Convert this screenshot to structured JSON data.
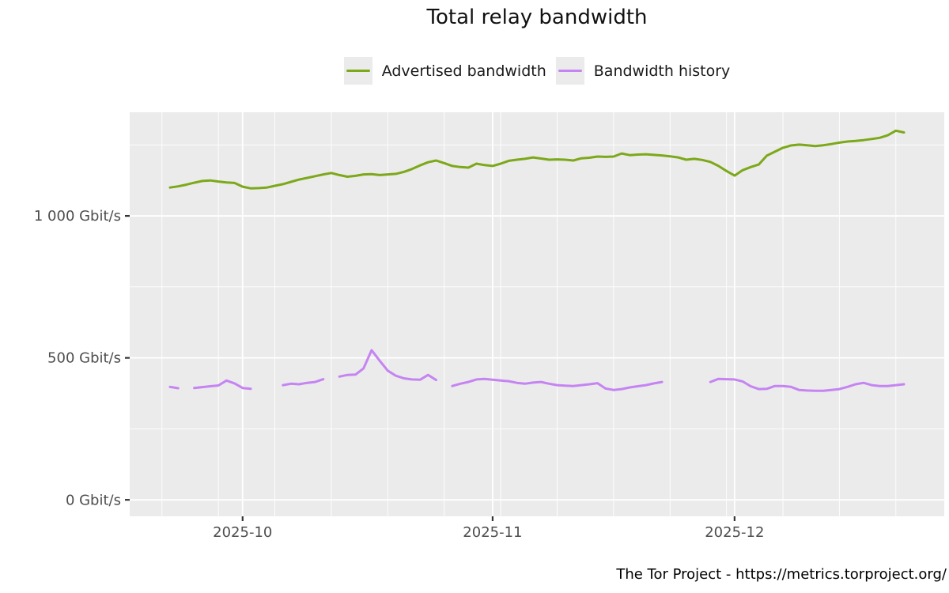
{
  "footer": {
    "text": "The Tor Project - https://metrics.torproject.org/"
  },
  "chart_data": {
    "type": "line",
    "title": "Total relay bandwidth",
    "xlabel": "",
    "ylabel": "",
    "legend_position": "top-center",
    "panel_bg": "#ebebeb",
    "grid_color": "#ffffff",
    "axis_text_color": "#4d4d4d",
    "tick_mark_color": "#333333",
    "x_domain": [
      "2025-09-17",
      "2025-12-27"
    ],
    "y_domain": [
      -58,
      1365
    ],
    "y_ticks": [
      {
        "value": 0,
        "label": "0 Gbit/s"
      },
      {
        "value": 500,
        "label": "500 Gbit/s"
      },
      {
        "value": 1000,
        "label": "1 000 Gbit/s"
      }
    ],
    "y_minor_gridlines": [
      250,
      750,
      1250
    ],
    "x_ticks": [
      {
        "date": "2025-10-01",
        "label": "2025-10"
      },
      {
        "date": "2025-11-01",
        "label": "2025-11"
      },
      {
        "date": "2025-12-01",
        "label": "2025-12"
      }
    ],
    "x_minor_gridlines": [
      "2025-09-21",
      "2025-09-28",
      "2025-10-05",
      "2025-10-12",
      "2025-10-19",
      "2025-10-26",
      "2025-11-02",
      "2025-11-09",
      "2025-11-16",
      "2025-11-23",
      "2025-11-30",
      "2025-12-07",
      "2025-12-14",
      "2025-12-21"
    ],
    "series": [
      {
        "name": "Advertised bandwidth",
        "color": "#7ca819",
        "unit": "Gbit/s",
        "start_date": "2025-09-22",
        "interval": "daily",
        "values": [
          1100,
          1104,
          1110,
          1117,
          1123,
          1125,
          1121,
          1118,
          1116,
          1103,
          1097,
          1098,
          1100,
          1106,
          1112,
          1120,
          1128,
          1134,
          1140,
          1146,
          1151,
          1144,
          1138,
          1141,
          1146,
          1147,
          1144,
          1146,
          1148,
          1155,
          1165,
          1178,
          1189,
          1195,
          1186,
          1176,
          1172,
          1170,
          1184,
          1179,
          1176,
          1184,
          1194,
          1198,
          1201,
          1206,
          1202,
          1198,
          1199,
          1198,
          1195,
          1203,
          1205,
          1209,
          1208,
          1209,
          1220,
          1214,
          1216,
          1217,
          1215,
          1213,
          1210,
          1206,
          1198,
          1201,
          1197,
          1190,
          1176,
          1158,
          1142,
          1161,
          1172,
          1181,
          1212,
          1226,
          1240,
          1248,
          1251,
          1249,
          1246,
          1249,
          1253,
          1258,
          1262,
          1264,
          1267,
          1271,
          1275,
          1284,
          1300,
          1294
        ]
      },
      {
        "name": "Bandwidth history",
        "color": "#c584f2",
        "unit": "Gbit/s",
        "start_date": "2025-09-22",
        "interval": "daily",
        "values": [
          398,
          393,
          null,
          394,
          397,
          400,
          403,
          420,
          410,
          394,
          391,
          null,
          null,
          null,
          404,
          409,
          407,
          412,
          415,
          425,
          null,
          434,
          440,
          441,
          463,
          527,
          490,
          455,
          437,
          428,
          424,
          423,
          440,
          422,
          null,
          401,
          409,
          415,
          424,
          426,
          423,
          420,
          418,
          412,
          409,
          413,
          415,
          409,
          404,
          402,
          401,
          404,
          407,
          411,
          392,
          387,
          390,
          396,
          400,
          404,
          410,
          415,
          null,
          null,
          null,
          null,
          null,
          415,
          426,
          425,
          424,
          417,
          400,
          390,
          391,
          401,
          401,
          398,
          387,
          385,
          384,
          384,
          387,
          390,
          398,
          407,
          412,
          404,
          401,
          401,
          404,
          407
        ]
      }
    ]
  }
}
